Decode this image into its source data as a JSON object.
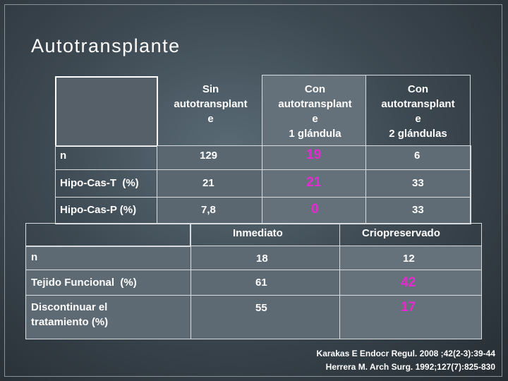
{
  "slide": {
    "title": "Autotransplante"
  },
  "table1": {
    "headers": [
      [
        "Sin",
        "autotransplant",
        "e",
        ""
      ],
      [
        "Con",
        "autotransplant",
        "e",
        "1 glándula"
      ],
      [
        "Con",
        "autotransplant",
        "e",
        "2 glándulas"
      ]
    ],
    "rows": [
      {
        "label": "n",
        "values": [
          "129",
          "19",
          "6"
        ]
      },
      {
        "label": "Hipo-Cas-T  (%)",
        "values": [
          "21",
          "21",
          "33"
        ]
      },
      {
        "label": "Hipo-Cas-P (%)",
        "values": [
          "7,8",
          "0",
          "33"
        ]
      }
    ]
  },
  "table2": {
    "headers": [
      "Inmediato",
      "Criopreservado"
    ],
    "rows": [
      {
        "label": "n",
        "values": [
          "18",
          "12"
        ]
      },
      {
        "label": "Tejido Funcional  (%)",
        "values": [
          "61",
          "42"
        ]
      },
      {
        "label": "Discontinuar el",
        "label2": "tratamiento (%)",
        "values": [
          "55",
          "17"
        ]
      }
    ]
  },
  "citations": [
    "Karakas E Endocr Regul. 2008 ;42(2-3):39-44",
    "Herrera M. Arch Surg. 1992;127(7):825-830"
  ],
  "colors": {
    "highlight": "#e32bd0",
    "text": "#ffffff",
    "cell_bg": "#59666f",
    "cell_bg_alt": "#67737b"
  }
}
